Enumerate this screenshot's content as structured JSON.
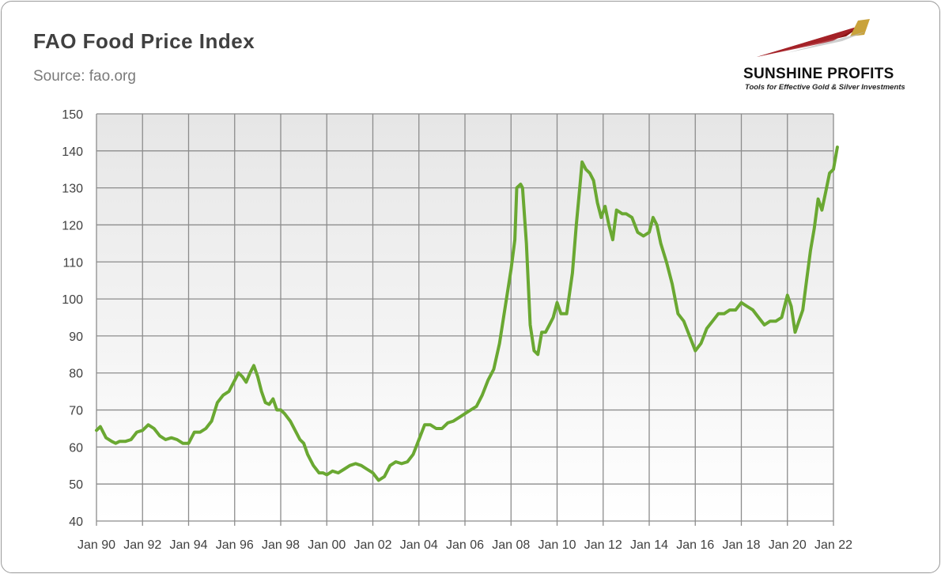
{
  "title": "FAO Food Price Index",
  "subtitle": "Source: fao.org",
  "logo": {
    "name": "SUNSHINE PROFITS",
    "tagline": "Tools for Effective Gold & Silver Investments"
  },
  "chart_data": {
    "type": "line",
    "title": "FAO Food Price Index",
    "subtitle": "Source: fao.org",
    "xlabel": "",
    "ylabel": "",
    "ylim": [
      40,
      150
    ],
    "yticks": [
      40,
      50,
      60,
      70,
      80,
      90,
      100,
      110,
      120,
      130,
      140,
      150
    ],
    "xlim": [
      "1990-01",
      "2022-01"
    ],
    "xticks": [
      "Jan 90",
      "Jan 92",
      "Jan 94",
      "Jan 96",
      "Jan 98",
      "Jan 00",
      "Jan 02",
      "Jan 04",
      "Jan 06",
      "Jan 08",
      "Jan 10",
      "Jan 12",
      "Jan 14",
      "Jan 16",
      "Jan 18",
      "Jan 20",
      "Jan 22"
    ],
    "grid": true,
    "legend": "none",
    "series_color": "#6aa832",
    "series": [
      {
        "points": [
          [
            "1990-01",
            64.5
          ],
          [
            "1990-03",
            65.5
          ],
          [
            "1990-06",
            62.5
          ],
          [
            "1990-09",
            61.5
          ],
          [
            "1990-11",
            61
          ],
          [
            "1991-01",
            61.5
          ],
          [
            "1991-04",
            61.5
          ],
          [
            "1991-07",
            62
          ],
          [
            "1991-10",
            64
          ],
          [
            "1992-01",
            64.5
          ],
          [
            "1992-04",
            66
          ],
          [
            "1992-07",
            65
          ],
          [
            "1992-10",
            63
          ],
          [
            "1993-01",
            62
          ],
          [
            "1993-04",
            62.5
          ],
          [
            "1993-07",
            62
          ],
          [
            "1993-10",
            61
          ],
          [
            "1994-01",
            61
          ],
          [
            "1994-04",
            64
          ],
          [
            "1994-07",
            64
          ],
          [
            "1994-10",
            65
          ],
          [
            "1995-01",
            67
          ],
          [
            "1995-04",
            72
          ],
          [
            "1995-07",
            74
          ],
          [
            "1995-10",
            75
          ],
          [
            "1996-01",
            78
          ],
          [
            "1996-03",
            80
          ],
          [
            "1996-05",
            79
          ],
          [
            "1996-07",
            77.5
          ],
          [
            "1996-09",
            80
          ],
          [
            "1996-11",
            82
          ],
          [
            "1997-01",
            79
          ],
          [
            "1997-03",
            75
          ],
          [
            "1997-05",
            72
          ],
          [
            "1997-07",
            71.5
          ],
          [
            "1997-09",
            73
          ],
          [
            "1997-11",
            70
          ],
          [
            "1998-01",
            70
          ],
          [
            "1998-03",
            69
          ],
          [
            "1998-06",
            67
          ],
          [
            "1998-09",
            64
          ],
          [
            "1998-11",
            62
          ],
          [
            "1999-01",
            61
          ],
          [
            "1999-03",
            58
          ],
          [
            "1999-06",
            55
          ],
          [
            "1999-09",
            53
          ],
          [
            "1999-11",
            53
          ],
          [
            "2000-01",
            52.5
          ],
          [
            "2000-04",
            53.5
          ],
          [
            "2000-07",
            53
          ],
          [
            "2000-10",
            54
          ],
          [
            "2001-01",
            55
          ],
          [
            "2001-04",
            55.5
          ],
          [
            "2001-07",
            55
          ],
          [
            "2001-10",
            54
          ],
          [
            "2002-01",
            53
          ],
          [
            "2002-04",
            51
          ],
          [
            "2002-07",
            52
          ],
          [
            "2002-10",
            55
          ],
          [
            "2003-01",
            56
          ],
          [
            "2003-04",
            55.5
          ],
          [
            "2003-07",
            56
          ],
          [
            "2003-10",
            58
          ],
          [
            "2004-01",
            62
          ],
          [
            "2004-04",
            66
          ],
          [
            "2004-07",
            66
          ],
          [
            "2004-10",
            65
          ],
          [
            "2005-01",
            65
          ],
          [
            "2005-04",
            66.5
          ],
          [
            "2005-07",
            67
          ],
          [
            "2005-10",
            68
          ],
          [
            "2006-01",
            69
          ],
          [
            "2006-04",
            70
          ],
          [
            "2006-07",
            71
          ],
          [
            "2006-10",
            74
          ],
          [
            "2007-01",
            78
          ],
          [
            "2007-04",
            81
          ],
          [
            "2007-07",
            88
          ],
          [
            "2007-10",
            98
          ],
          [
            "2008-01",
            108
          ],
          [
            "2008-03",
            116
          ],
          [
            "2008-04",
            130
          ],
          [
            "2008-06",
            131
          ],
          [
            "2008-07",
            130
          ],
          [
            "2008-09",
            115
          ],
          [
            "2008-11",
            93
          ],
          [
            "2009-01",
            86
          ],
          [
            "2009-03",
            85
          ],
          [
            "2009-05",
            91
          ],
          [
            "2009-07",
            91
          ],
          [
            "2009-09",
            93
          ],
          [
            "2009-11",
            95
          ],
          [
            "2010-01",
            99
          ],
          [
            "2010-03",
            96
          ],
          [
            "2010-06",
            96
          ],
          [
            "2010-09",
            107
          ],
          [
            "2010-11",
            120
          ],
          [
            "2011-01",
            131
          ],
          [
            "2011-02",
            137
          ],
          [
            "2011-04",
            135
          ],
          [
            "2011-06",
            134
          ],
          [
            "2011-08",
            132
          ],
          [
            "2011-10",
            126
          ],
          [
            "2011-12",
            122
          ],
          [
            "2012-02",
            125
          ],
          [
            "2012-04",
            120
          ],
          [
            "2012-06",
            116
          ],
          [
            "2012-08",
            124
          ],
          [
            "2012-11",
            123
          ],
          [
            "2013-01",
            123
          ],
          [
            "2013-04",
            122
          ],
          [
            "2013-07",
            118
          ],
          [
            "2013-10",
            117
          ],
          [
            "2014-01",
            118
          ],
          [
            "2014-03",
            122
          ],
          [
            "2014-05",
            120
          ],
          [
            "2014-07",
            115
          ],
          [
            "2014-10",
            110
          ],
          [
            "2015-01",
            104
          ],
          [
            "2015-04",
            96
          ],
          [
            "2015-07",
            94
          ],
          [
            "2015-10",
            90
          ],
          [
            "2016-01",
            86
          ],
          [
            "2016-04",
            88
          ],
          [
            "2016-07",
            92
          ],
          [
            "2016-10",
            94
          ],
          [
            "2017-01",
            96
          ],
          [
            "2017-04",
            96
          ],
          [
            "2017-07",
            97
          ],
          [
            "2017-10",
            97
          ],
          [
            "2018-01",
            99
          ],
          [
            "2018-04",
            98
          ],
          [
            "2018-07",
            97
          ],
          [
            "2018-10",
            95
          ],
          [
            "2019-01",
            93
          ],
          [
            "2019-04",
            94
          ],
          [
            "2019-07",
            94
          ],
          [
            "2019-10",
            95
          ],
          [
            "2020-01",
            101
          ],
          [
            "2020-03",
            98
          ],
          [
            "2020-05",
            91
          ],
          [
            "2020-07",
            94
          ],
          [
            "2020-09",
            97
          ],
          [
            "2020-11",
            105
          ],
          [
            "2021-01",
            113
          ],
          [
            "2021-03",
            119
          ],
          [
            "2021-05",
            127
          ],
          [
            "2021-07",
            124
          ],
          [
            "2021-09",
            129
          ],
          [
            "2021-11",
            134
          ],
          [
            "2022-01",
            135
          ],
          [
            "2022-03",
            141
          ]
        ]
      }
    ]
  }
}
